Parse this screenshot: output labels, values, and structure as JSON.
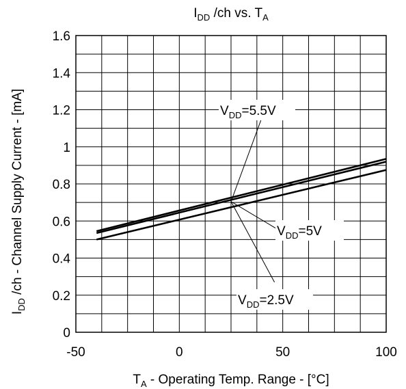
{
  "chart_data": {
    "type": "line",
    "title": {
      "main": "I",
      "sub": "DD",
      "rest": " /ch vs. T",
      "sub2": "A"
    },
    "xlabel": {
      "main": "T",
      "sub": "A",
      "rest": " - Operating Temp. Range - [°C]"
    },
    "ylabel": {
      "main": "I",
      "sub": "DD",
      "rest": " /ch - Channel Supply Current - [mA]"
    },
    "xlim": [
      -50,
      100
    ],
    "ylim": [
      0,
      1.6
    ],
    "x_ticks": [
      -50,
      0,
      50,
      100
    ],
    "x_tick_labels": [
      "-50",
      "0",
      "50",
      "100"
    ],
    "y_ticks": [
      0,
      0.2,
      0.4,
      0.6,
      0.8,
      1,
      1.2,
      1.4,
      1.6
    ],
    "y_tick_labels": [
      "0",
      "0.2",
      "0.4",
      "0.6",
      "0.8",
      "1",
      "1.2",
      "1.4",
      "1.6"
    ],
    "grid": true,
    "series": [
      {
        "name": "VDD=5.5V",
        "x": [
          -40,
          100
        ],
        "y": [
          0.545,
          0.935
        ]
      },
      {
        "name": "VDD=5V",
        "x": [
          -40,
          100
        ],
        "y": [
          0.535,
          0.92
        ]
      },
      {
        "name": "VDD=2.5V",
        "x": [
          -40,
          100
        ],
        "y": [
          0.5,
          0.875
        ]
      }
    ],
    "annotations": [
      {
        "series": 0,
        "main": "V",
        "sub": "DD",
        "rest": "=5.5V"
      },
      {
        "series": 1,
        "main": "V",
        "sub": "DD",
        "rest": "=5V"
      },
      {
        "series": 2,
        "main": "V",
        "sub": "DD",
        "rest": "=2.5V"
      }
    ]
  }
}
